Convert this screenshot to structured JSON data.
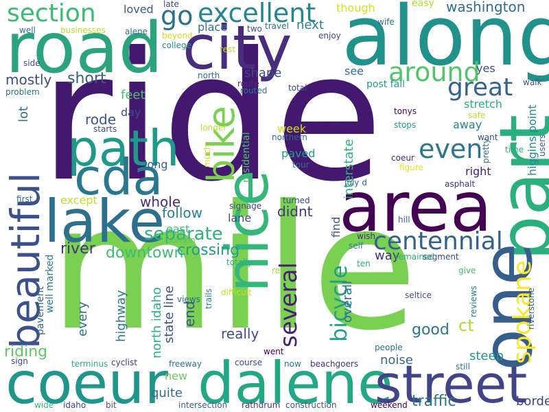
{
  "words": [
    {
      "text": "ride",
      "color": "#45186f"
    },
    {
      "text": "mile",
      "color": "#7ad151"
    },
    {
      "text": "along",
      "color": "#21918c"
    },
    {
      "text": "road",
      "color": "#2ca37f"
    },
    {
      "text": "city",
      "color": "#472d7b"
    },
    {
      "text": "part",
      "color": "#2ab07f"
    },
    {
      "text": "area",
      "color": "#440154"
    },
    {
      "text": "coeur",
      "color": "#1f968b"
    },
    {
      "text": "dalene",
      "color": "#22a884"
    },
    {
      "text": "street",
      "color": "#414487"
    },
    {
      "text": "one",
      "color": "#355e8d"
    },
    {
      "text": "lake",
      "color": "#2d708e"
    },
    {
      "text": "path",
      "color": "#1f9a8a"
    },
    {
      "text": "cda",
      "color": "#2a788e"
    },
    {
      "text": "beautiful",
      "color": "#3b518b"
    },
    {
      "text": "nice",
      "color": "#35b779"
    },
    {
      "text": "bike",
      "color": "#7ad151"
    },
    {
      "text": "section",
      "color": "#3bbb75"
    },
    {
      "text": "excellent",
      "color": "#24868e"
    },
    {
      "text": "go",
      "color": "#2c728e"
    },
    {
      "text": "around",
      "color": "#52c569"
    },
    {
      "text": "great",
      "color": "#32648e"
    },
    {
      "text": "even",
      "color": "#2a768e"
    },
    {
      "text": "spokane",
      "color": "#fde725"
    },
    {
      "text": "centennial",
      "color": "#33638d"
    },
    {
      "text": "several",
      "color": "#481f70"
    },
    {
      "text": "bicycle",
      "color": "#1fa088"
    },
    {
      "text": "separate",
      "color": "#2db27d"
    },
    {
      "text": "mostly",
      "color": "#3e4c8a"
    },
    {
      "text": "short",
      "color": "#365c8d"
    },
    {
      "text": "washington",
      "color": "#2f6c8e"
    },
    {
      "text": "downtown",
      "color": "#3fbc73"
    },
    {
      "text": "crossing",
      "color": "#1fa088"
    },
    {
      "text": "river",
      "color": "#46337e"
    },
    {
      "text": "riding",
      "color": "#5ec962"
    },
    {
      "text": "good",
      "color": "#2a788e"
    },
    {
      "text": "traffic",
      "color": "#2a788e"
    },
    {
      "text": "border",
      "color": "#414487"
    },
    {
      "text": "quite",
      "color": "#2d708e"
    },
    {
      "text": "new",
      "color": "#6ccd5a"
    },
    {
      "text": "noise",
      "color": "#31688e"
    },
    {
      "text": "steep",
      "color": "#1f968b"
    },
    {
      "text": "really",
      "color": "#3e4c8a"
    },
    {
      "text": "every",
      "color": "#2c728e"
    },
    {
      "text": "highway",
      "color": "#2a788e"
    },
    {
      "text": "end",
      "color": "#3b528b"
    },
    {
      "text": "north idaho",
      "color": "#2ab07f"
    },
    {
      "text": "state line",
      "color": "#3b528b"
    },
    {
      "text": "pavement",
      "color": "#31688e"
    },
    {
      "text": "well marked",
      "color": "#2a788e"
    },
    {
      "text": "overall",
      "color": "#2c728e"
    },
    {
      "text": "way",
      "color": "#46327e"
    },
    {
      "text": "ct",
      "color": "#addc30"
    },
    {
      "text": "find",
      "color": "#3b528b"
    },
    {
      "text": "didnt",
      "color": "#46337e"
    },
    {
      "text": "whole",
      "color": "#472d7b"
    },
    {
      "text": "follow",
      "color": "#25848e"
    },
    {
      "text": "lane",
      "color": "#3e4989"
    },
    {
      "text": "east",
      "color": "#3bbb75"
    },
    {
      "text": "except",
      "color": "#bddf26"
    },
    {
      "text": "long",
      "color": "#355f8d"
    },
    {
      "text": "rode",
      "color": "#3a548c"
    },
    {
      "text": "day",
      "color": "#3e4a89"
    },
    {
      "text": "feet",
      "color": "#4ac16d"
    },
    {
      "text": "lot",
      "color": "#2e6f8e"
    },
    {
      "text": "shape",
      "color": "#3e4989"
    },
    {
      "text": "place",
      "color": "#2d708e"
    },
    {
      "text": "next",
      "color": "#277f8e"
    },
    {
      "text": "loved",
      "color": "#38588c"
    },
    {
      "text": "though",
      "color": "#d8e219"
    },
    {
      "text": "easy",
      "color": "#b5de2b"
    },
    {
      "text": "yes",
      "color": "#3e4989"
    },
    {
      "text": "see",
      "color": "#2d708e"
    },
    {
      "text": "stretch",
      "color": "#29af7f"
    },
    {
      "text": "away",
      "color": "#25838e"
    },
    {
      "text": "right",
      "color": "#482173"
    },
    {
      "text": "higgins point",
      "color": "#23898e"
    },
    {
      "text": "interstate",
      "color": "#2db27d"
    },
    {
      "text": "paved",
      "color": "#1f9e89"
    },
    {
      "text": "week",
      "color": "#d0e11c"
    },
    {
      "text": "residential",
      "color": "#4ac16d"
    },
    {
      "text": "post fall",
      "color": "#1fa088"
    },
    {
      "text": "walk",
      "color": "#3b528b"
    },
    {
      "text": "safe",
      "color": "#bddf26"
    },
    {
      "text": "want",
      "color": "#3e4a89"
    },
    {
      "text": "pretty",
      "color": "#2c728e"
    },
    {
      "text": "time",
      "color": "#29af7f"
    },
    {
      "text": "users",
      "color": "#355f8d"
    },
    {
      "text": "figure",
      "color": "#e5e419"
    },
    {
      "text": "coeur",
      "color": "#482878"
    },
    {
      "text": "asphalt",
      "color": "#46337e"
    },
    {
      "text": "tour",
      "color": "#2d708e"
    },
    {
      "text": "northern",
      "color": "#2e6d8e"
    },
    {
      "text": "stops",
      "color": "#1f9e89"
    },
    {
      "text": "tonys",
      "color": "#440154"
    },
    {
      "text": "july d",
      "color": "#2e6e8e"
    },
    {
      "text": "signage",
      "color": "#404688"
    },
    {
      "text": "turned",
      "color": "#3f4889"
    },
    {
      "text": "wish",
      "color": "#472c7a"
    },
    {
      "text": "self",
      "color": "#25858e"
    },
    {
      "text": "hill",
      "color": "#31688e"
    },
    {
      "text": "segment",
      "color": "#3e4a89"
    },
    {
      "text": "remained",
      "color": "#2ab07f"
    },
    {
      "text": "give",
      "color": "#3dbc74"
    },
    {
      "text": "ten",
      "color": "#29af7f"
    },
    {
      "text": "riverstone",
      "color": "#33638d"
    },
    {
      "text": "reviews",
      "color": "#287d8e"
    },
    {
      "text": "seltice",
      "color": "#3b528b"
    },
    {
      "text": "people",
      "color": "#2c728e"
    },
    {
      "text": "still",
      "color": "#2d718e"
    },
    {
      "text": "beachgoers",
      "color": "#46327e"
    },
    {
      "text": "now",
      "color": "#2c738e"
    },
    {
      "text": "went",
      "color": "#440154"
    },
    {
      "text": "course",
      "color": "#3e4989"
    },
    {
      "text": "construction",
      "color": "#39568c"
    },
    {
      "text": "weekend",
      "color": "#440154"
    },
    {
      "text": "intersection",
      "color": "#33638d"
    },
    {
      "text": "rathdrum",
      "color": "#46337e"
    },
    {
      "text": "freeway",
      "color": "#2c728e"
    },
    {
      "text": "cyclist",
      "color": "#46337e"
    },
    {
      "text": "terminus",
      "color": "#2ab07f"
    },
    {
      "text": "bit",
      "color": "#3b528b"
    },
    {
      "text": "idaho",
      "color": "#3e4989"
    },
    {
      "text": "wide",
      "color": "#35b779"
    },
    {
      "text": "sign",
      "color": "#3e4a89"
    },
    {
      "text": "trails",
      "color": "#277f8e"
    },
    {
      "text": "difficult",
      "color": "#c8e020"
    },
    {
      "text": "views",
      "color": "#2e6e8e"
    },
    {
      "text": "totally",
      "color": "#2ab07f"
    },
    {
      "text": "re",
      "color": "#a0da39"
    },
    {
      "text": "portion",
      "color": "#52c569"
    },
    {
      "text": "first",
      "color": "#2c728e"
    },
    {
      "text": "starts",
      "color": "#3e4989"
    },
    {
      "text": "problem",
      "color": "#2d718e"
    },
    {
      "text": "side",
      "color": "#3e4989"
    },
    {
      "text": "well",
      "color": "#2e6d8e"
    },
    {
      "text": "businesses",
      "color": "#bddf26"
    },
    {
      "text": "alene",
      "color": "#2d708e"
    },
    {
      "text": "beyond",
      "color": "#d2e21b"
    },
    {
      "text": "college",
      "color": "#21918c"
    },
    {
      "text": "late",
      "color": "#3f4788"
    },
    {
      "text": "two",
      "color": "#3b528b"
    },
    {
      "text": "travel",
      "color": "#2d718e"
    },
    {
      "text": "enjoy",
      "color": "#3e4989"
    },
    {
      "text": "wife",
      "color": "#2c738e"
    },
    {
      "text": "rest",
      "color": "#bddf26"
    },
    {
      "text": "north",
      "color": "#2d708e"
    },
    {
      "text": "route",
      "color": "#472d7b"
    },
    {
      "text": "routed",
      "color": "#2c728e"
    },
    {
      "text": "total",
      "color": "#3e4989"
    },
    {
      "text": "much",
      "color": "#d0e11c"
    },
    {
      "text": "longer",
      "color": "#bddf26"
    }
  ]
}
